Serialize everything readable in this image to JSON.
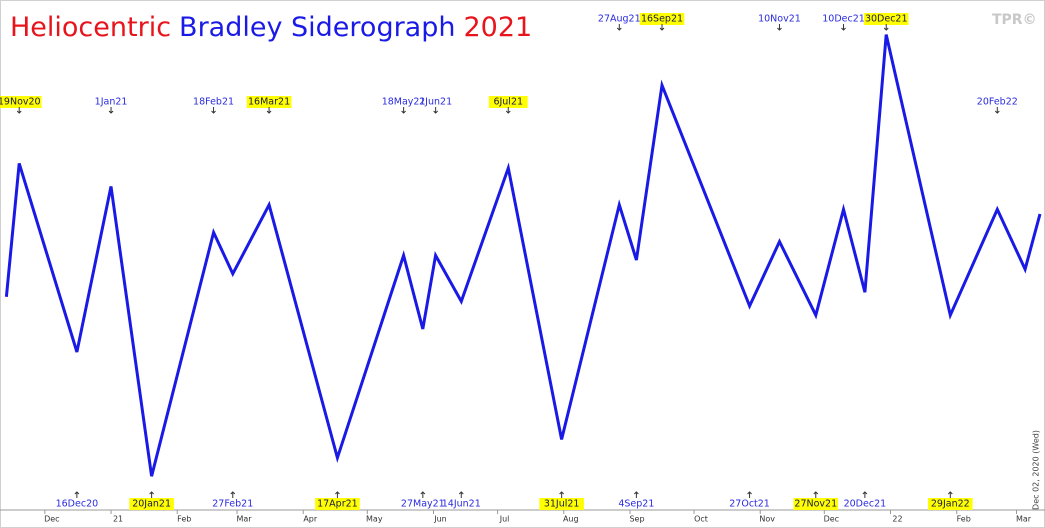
{
  "chart_data": {
    "type": "line",
    "title_parts": [
      {
        "text": "Heliocentric",
        "color": "#e8141c"
      },
      {
        "text": "Bradley Siderograph",
        "color": "#1a1ae6"
      },
      {
        "text": "2021",
        "color": "#e8141c"
      }
    ],
    "logo": "TPR©",
    "side_note": "Dec 02, 2020 (Wed)",
    "xlim": [
      "2020-11-10",
      "2022-03-12"
    ],
    "ylim": [
      0,
      100
    ],
    "xticks": [
      {
        "value": "2020-12-01",
        "label": "Dec"
      },
      {
        "value": "2021-01-01",
        "label": "21"
      },
      {
        "value": "2021-02-01",
        "label": "Feb"
      },
      {
        "value": "2021-03-01",
        "label": "Mar"
      },
      {
        "value": "2021-04-01",
        "label": "Apr"
      },
      {
        "value": "2021-05-01",
        "label": "May"
      },
      {
        "value": "2021-06-01",
        "label": "Jun"
      },
      {
        "value": "2021-07-01",
        "label": "Jul"
      },
      {
        "value": "2021-08-01",
        "label": "Aug"
      },
      {
        "value": "2021-09-01",
        "label": "Sep"
      },
      {
        "value": "2021-10-01",
        "label": "Oct"
      },
      {
        "value": "2021-11-01",
        "label": "Nov"
      },
      {
        "value": "2021-12-01",
        "label": "Dec"
      },
      {
        "value": "2022-01-01",
        "label": "22"
      },
      {
        "value": "2022-02-01",
        "label": "Feb"
      },
      {
        "value": "2022-03-01",
        "label": "Mar"
      }
    ],
    "series": [
      {
        "color": "#1a1ae6",
        "x": [
          "2020-11-13",
          "2020-11-19",
          "2020-12-16",
          "2021-01-01",
          "2021-01-20",
          "2021-02-18",
          "2021-02-27",
          "2021-03-16",
          "2021-04-17",
          "2021-05-18",
          "2021-05-27",
          "2021-06-02",
          "2021-06-14",
          "2021-07-06",
          "2021-07-31",
          "2021-08-27",
          "2021-09-04",
          "2021-09-16",
          "2021-10-27",
          "2021-11-10",
          "2021-11-27",
          "2021-12-10",
          "2021-12-20",
          "2021-12-30",
          "2022-01-29",
          "2022-02-20",
          "2022-03-05",
          "2022-03-12"
        ],
        "values": [
          42,
          71,
          30,
          66,
          3,
          56,
          47,
          62,
          7,
          51,
          35,
          51,
          41,
          70,
          11,
          62,
          50,
          88,
          40,
          54,
          38,
          61,
          43,
          99,
          38,
          61,
          48,
          60
        ]
      }
    ],
    "annotations_top_high": [
      {
        "text": "27Aug21",
        "highlight": false
      },
      {
        "text": "16Sep21",
        "highlight": true
      },
      {
        "text": "10Nov21",
        "highlight": false
      },
      {
        "text": "10Dec21",
        "highlight": false
      },
      {
        "text": "30Dec21",
        "highlight": true
      }
    ],
    "annotations_top": [
      {
        "text": "19Nov20",
        "highlight": true
      },
      {
        "text": "1Jan21",
        "highlight": false
      },
      {
        "text": "18Feb21",
        "highlight": false
      },
      {
        "text": "16Mar21",
        "highlight": true
      },
      {
        "text": "18May21",
        "highlight": false
      },
      {
        "text": "2Jun21",
        "highlight": false
      },
      {
        "text": "6Jul21",
        "highlight": true
      },
      {
        "text": "20Feb22",
        "highlight": false
      }
    ],
    "annotations_bottom": [
      {
        "text": "16Dec20",
        "highlight": false
      },
      {
        "text": "20Jan21",
        "highlight": true
      },
      {
        "text": "27Feb21",
        "highlight": false
      },
      {
        "text": "17Apr21",
        "highlight": true
      },
      {
        "text": "27May21",
        "highlight": false
      },
      {
        "text": "14Jun21",
        "highlight": false
      },
      {
        "text": "31Jul21",
        "highlight": true
      },
      {
        "text": "4Sep21",
        "highlight": false
      },
      {
        "text": "27Oct21",
        "highlight": false
      },
      {
        "text": "27Nov21",
        "highlight": true
      },
      {
        "text": "20Dec21",
        "highlight": false
      },
      {
        "text": "29Jan22",
        "highlight": true
      }
    ]
  }
}
